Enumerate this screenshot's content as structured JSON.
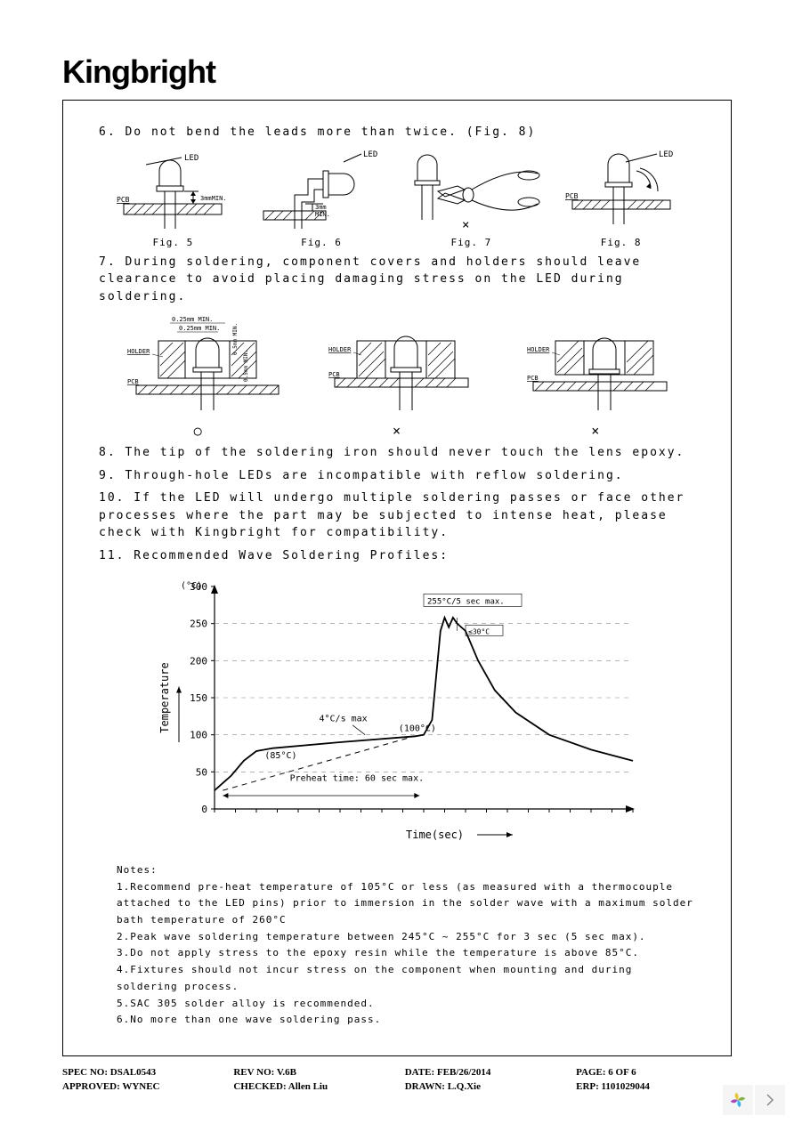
{
  "logo": "Kingbright",
  "instructions": {
    "i6": "6.  Do not bend the leads more than twice. (Fig. 8)",
    "i7": "7.  During soldering, component covers and holders should leave clearance to avoid placing damaging stress on the LED during soldering.",
    "i8": "8.  The tip of the soldering iron should never touch the lens epoxy.",
    "i9": "9.  Through-hole LEDs are incompatible with reflow soldering.",
    "i10": "10. If the LED will undergo multiple soldering passes or face other processes where the part may be subjected to intense heat, please check with Kingbright for compatibility.",
    "i11": "11. Recommended Wave Soldering Profiles:"
  },
  "figs": {
    "f5": "Fig. 5",
    "f6": "Fig. 6",
    "f7": "Fig. 7",
    "f8": "Fig. 8"
  },
  "figlabels": {
    "led": "LED",
    "pcb": "PCB",
    "holder": "HOLDER",
    "min3mm": "3mmMIN.",
    "min3mm_b": "3mm\nMIN.",
    "min025a": "0.25mm MIN.",
    "min025b": "0.25mm MIN.",
    "min05a": "0.5mm MIN.",
    "min05b": "0.5mm MIN."
  },
  "marks": {
    "ok": "○",
    "ng": "×"
  },
  "chart": {
    "type": "line",
    "y_label": "Temperature",
    "x_label": "Time(sec)",
    "y_unit": "(°C)",
    "ylim": [
      0,
      300
    ],
    "yticks": [
      0,
      50,
      100,
      150,
      200,
      250,
      300
    ],
    "x_range": [
      0,
      100
    ],
    "grid_color": "#888888",
    "line_color": "#000000",
    "bg_color": "#ffffff",
    "annotations": {
      "peak": "255°C/5 sec max.",
      "delta": "≤30°C",
      "ramp": "4°C/s max",
      "t85": "(85°C)",
      "t100": "(100°C)",
      "preheat": "Preheat time: 60 sec max."
    },
    "solid_curve": [
      [
        0,
        25
      ],
      [
        4,
        45
      ],
      [
        7,
        65
      ],
      [
        10,
        78
      ],
      [
        14,
        82
      ],
      [
        30,
        90
      ],
      [
        48,
        98
      ],
      [
        50,
        100
      ],
      [
        52,
        120
      ],
      [
        53,
        180
      ],
      [
        54,
        240
      ],
      [
        55,
        258
      ],
      [
        56,
        245
      ],
      [
        57,
        258
      ],
      [
        58,
        250
      ],
      [
        60,
        240
      ],
      [
        63,
        200
      ],
      [
        67,
        160
      ],
      [
        72,
        130
      ],
      [
        80,
        100
      ],
      [
        90,
        80
      ],
      [
        100,
        65
      ]
    ],
    "dashed_line": [
      [
        2,
        25
      ],
      [
        49,
        100
      ]
    ]
  },
  "notes_title": "Notes:",
  "notes": [
    "1.Recommend pre-heat temperature of 105°C or less (as measured with a thermocouple attached to the LED pins) prior to immersion in the solder wave with a maximum solder bath temperature of 260°C",
    "2.Peak wave soldering temperature between 245°C ~ 255°C for 3 sec (5 sec max).",
    "3.Do not apply stress to the epoxy resin while the temperature is above 85°C.",
    "4.Fixtures should not incur stress on the component when mounting and during soldering process.",
    "5.SAC 305 solder alloy is recommended.",
    "6.No more than one wave soldering pass."
  ],
  "footer": {
    "spec": "SPEC NO: DSAL0543",
    "rev": "REV NO: V.6B",
    "date": "DATE: FEB/26/2014",
    "page": "PAGE: 6 OF 6",
    "approved": "APPROVED: WYNEC",
    "checked": "CHECKED: Allen Liu",
    "drawn": "DRAWN: L.Q.Xie",
    "erp": "ERP: 1101029044"
  },
  "colors": {
    "text": "#000000",
    "border": "#000000",
    "hatch": "#000000",
    "widget_bg": "#f5f5f5",
    "petal_y": "#f0c419",
    "petal_g": "#7cb342",
    "petal_b": "#29b6f6",
    "petal_m": "#ab47bc",
    "chevron": "#888888"
  }
}
